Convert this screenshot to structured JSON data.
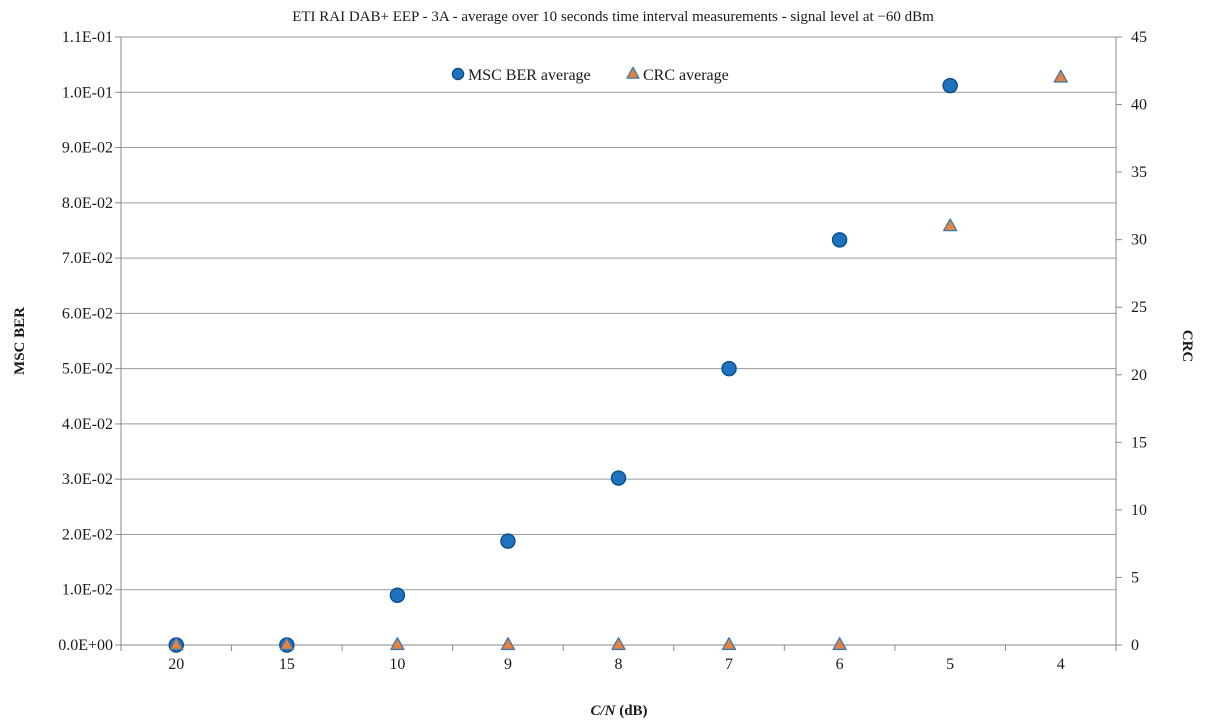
{
  "chart_data": {
    "type": "scatter",
    "title": "ETI RAI DAB+ EEP - 3A - average over 10 seconds time  interval measurements - signal level at −60 dBm",
    "xlabel_italic": "C/N",
    "xlabel_rest": " (dB)",
    "ylabel": "MSC BER",
    "y2label": "CRC",
    "categories": [
      "20",
      "15",
      "10",
      "9",
      "8",
      "7",
      "6",
      "5",
      "4"
    ],
    "ylim": [
      0,
      0.11
    ],
    "y_ticks": [
      0,
      0.01,
      0.02,
      0.03,
      0.04,
      0.05,
      0.06,
      0.07,
      0.08,
      0.09,
      0.1,
      0.11
    ],
    "y_tick_labels": [
      "0.0E+00",
      "1.0E-02",
      "2.0E-02",
      "3.0E-02",
      "4.0E-02",
      "5.0E-02",
      "6.0E-02",
      "7.0E-02",
      "8.0E-02",
      "9.0E-02",
      "1.0E-01",
      "1.1E-01"
    ],
    "y2lim": [
      0,
      45
    ],
    "y2_ticks": [
      0,
      5,
      10,
      15,
      20,
      25,
      30,
      35,
      40,
      45
    ],
    "y2_tick_labels": [
      "0",
      "5",
      "10",
      "15",
      "20",
      "25",
      "30",
      "35",
      "40",
      "45"
    ],
    "grid": true,
    "legend_position": "top-center",
    "series": [
      {
        "name": "MSC BER average",
        "axis": "left",
        "marker": "circle",
        "color": "#1e73be",
        "values": [
          0.0,
          0.0,
          0.009,
          0.0188,
          0.0302,
          0.05,
          0.0733,
          0.1012,
          null
        ]
      },
      {
        "name": "CRC average",
        "axis": "right",
        "marker": "triangle",
        "color": "#e8823a",
        "values": [
          0,
          0,
          0,
          0,
          0,
          0,
          0,
          31,
          42
        ]
      }
    ]
  }
}
